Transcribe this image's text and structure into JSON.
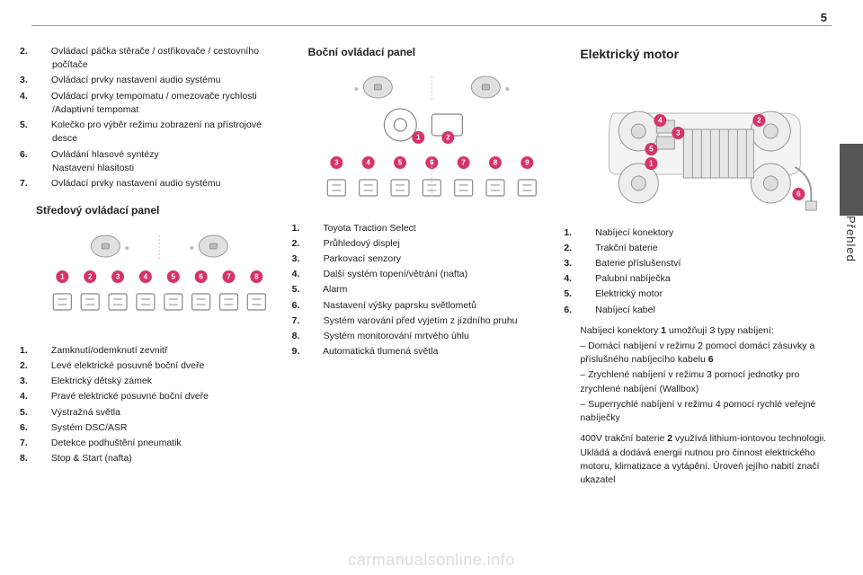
{
  "page_number": "5",
  "side_label": "Přehled",
  "watermark": "carmanualsonline.info",
  "col1": {
    "list_top": [
      {
        "n": "2.",
        "t": "Ovládací páčka stěrače / ostřikovače / cestovního počítače"
      },
      {
        "n": "3.",
        "t": "Ovládací prvky nastavení audio systému"
      },
      {
        "n": "4.",
        "t": "Ovládací prvky tempomatu / omezovače rychlosti /Adaptivní tempomat"
      },
      {
        "n": "5.",
        "t": "Kolečko pro výběr režimu zobrazení na přístrojové desce"
      },
      {
        "n": "6.",
        "t": "Ovládání hlasové syntézy\nNastavení hlasitosti"
      },
      {
        "n": "7.",
        "t": "Ovládací prvky nastavení audio systému"
      }
    ],
    "heading": "Středový ovládací panel",
    "badges": [
      "1",
      "2",
      "3",
      "4",
      "5",
      "6",
      "7",
      "8"
    ],
    "list_bottom": [
      {
        "n": "1.",
        "t": "Zamknutí/odemknutí zevnitř"
      },
      {
        "n": "2.",
        "t": "Levé elektrické posuvné boční dveře"
      },
      {
        "n": "3.",
        "t": "Elektrický dětský zámek"
      },
      {
        "n": "4.",
        "t": "Pravé elektrické posuvné boční dveře"
      },
      {
        "n": "5.",
        "t": "Výstražná světla"
      },
      {
        "n": "6.",
        "t": "Systém DSC/ASR"
      },
      {
        "n": "7.",
        "t": "Detekce podhuštění pneumatik"
      },
      {
        "n": "8.",
        "t": "Stop & Start (nafta)"
      }
    ]
  },
  "col2": {
    "heading": "Boční ovládací panel",
    "badges_top": [
      "1",
      "2"
    ],
    "badges_bottom": [
      "3",
      "4",
      "5",
      "6",
      "7",
      "8",
      "9"
    ],
    "list": [
      {
        "n": "1.",
        "t": "Toyota Traction Select"
      },
      {
        "n": "2.",
        "t": "Průhledový displej"
      },
      {
        "n": "3.",
        "t": "Parkovací senzory"
      },
      {
        "n": "4.",
        "t": "Další systém topení/větrání (nafta)"
      },
      {
        "n": "5.",
        "t": "Alarm"
      },
      {
        "n": "6.",
        "t": "Nastavení výšky paprsku světlometů"
      },
      {
        "n": "7.",
        "t": "Systém varování před vyjetím z jízdního pruhu"
      },
      {
        "n": "8.",
        "t": "Systém monitorování mrtvého úhlu"
      },
      {
        "n": "9.",
        "t": "Automatická tlumená světla"
      }
    ]
  },
  "col3": {
    "heading": "Elektrický motor",
    "badges": [
      "1",
      "2",
      "3",
      "4",
      "5",
      "6"
    ],
    "list": [
      {
        "n": "1.",
        "t": "Nabíjecí konektory"
      },
      {
        "n": "2.",
        "t": "Trakční baterie"
      },
      {
        "n": "3.",
        "t": "Baterie příslušenství"
      },
      {
        "n": "4.",
        "t": "Palubní nabíječka"
      },
      {
        "n": "5.",
        "t": "Elektrický motor"
      },
      {
        "n": "6.",
        "t": "Nabíjecí kabel"
      }
    ],
    "para1_a": "Nabíjecí konektory ",
    "para1_n1": "1",
    "para1_b": " umožňují 3 typy nabíjení:",
    "bul1_a": "–  Domácí nabíjení v režimu 2 pomocí domácí zásuvky a příslušného nabíjecího kabelu ",
    "bul1_n": "6",
    "bul2": "–  Zrychlené nabíjení v režimu 3 pomocí jednotky pro zrychlené nabíjení (Wallbox)",
    "bul3": "–  Superrychlé nabíjení v režimu 4 pomocí rychlé veřejné nabíječky",
    "para2_a": "400V trakční baterie ",
    "para2_n": "2",
    "para2_b": " využívá lithium-iontovou technologii. Ukládá a dodává energii nutnou pro činnost elektrického motoru, klimatizace a vytápění. Úroveň jejího nabití značí ukazatel"
  },
  "colors": {
    "badge": "#d6336c",
    "badge_text": "#ffffff",
    "icon_stroke": "#888888",
    "icon_fill": "#bbbbbb",
    "divider": "#cccccc"
  }
}
